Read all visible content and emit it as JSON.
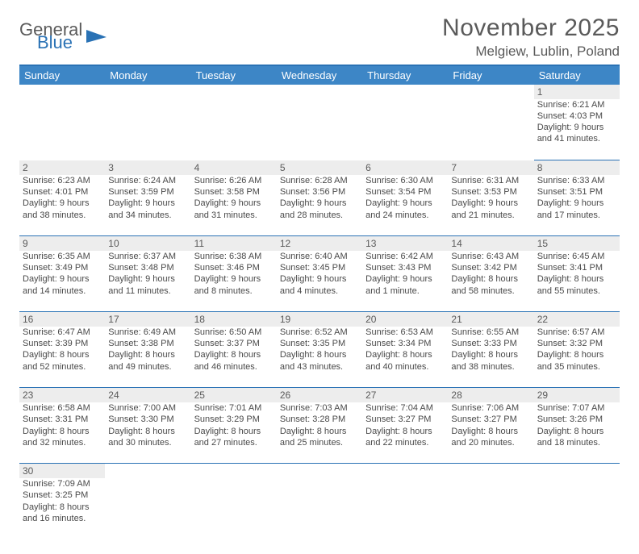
{
  "logo": {
    "word1": "General",
    "word2": "Blue"
  },
  "title": "November 2025",
  "location": "Melgiew, Lublin, Poland",
  "colors": {
    "brand_blue": "#2a72b5",
    "header_blue": "#3d86c6",
    "shade": "#ededed",
    "text_gray": "#5a5a5a"
  },
  "dayHeaders": [
    "Sunday",
    "Monday",
    "Tuesday",
    "Wednesday",
    "Thursday",
    "Friday",
    "Saturday"
  ],
  "weeks": [
    [
      null,
      null,
      null,
      null,
      null,
      null,
      {
        "n": "1",
        "sr": "Sunrise: 6:21 AM",
        "ss": "Sunset: 4:03 PM",
        "dl1": "Daylight: 9 hours",
        "dl2": "and 41 minutes."
      }
    ],
    [
      {
        "n": "2",
        "sr": "Sunrise: 6:23 AM",
        "ss": "Sunset: 4:01 PM",
        "dl1": "Daylight: 9 hours",
        "dl2": "and 38 minutes."
      },
      {
        "n": "3",
        "sr": "Sunrise: 6:24 AM",
        "ss": "Sunset: 3:59 PM",
        "dl1": "Daylight: 9 hours",
        "dl2": "and 34 minutes."
      },
      {
        "n": "4",
        "sr": "Sunrise: 6:26 AM",
        "ss": "Sunset: 3:58 PM",
        "dl1": "Daylight: 9 hours",
        "dl2": "and 31 minutes."
      },
      {
        "n": "5",
        "sr": "Sunrise: 6:28 AM",
        "ss": "Sunset: 3:56 PM",
        "dl1": "Daylight: 9 hours",
        "dl2": "and 28 minutes."
      },
      {
        "n": "6",
        "sr": "Sunrise: 6:30 AM",
        "ss": "Sunset: 3:54 PM",
        "dl1": "Daylight: 9 hours",
        "dl2": "and 24 minutes."
      },
      {
        "n": "7",
        "sr": "Sunrise: 6:31 AM",
        "ss": "Sunset: 3:53 PM",
        "dl1": "Daylight: 9 hours",
        "dl2": "and 21 minutes."
      },
      {
        "n": "8",
        "sr": "Sunrise: 6:33 AM",
        "ss": "Sunset: 3:51 PM",
        "dl1": "Daylight: 9 hours",
        "dl2": "and 17 minutes."
      }
    ],
    [
      {
        "n": "9",
        "sr": "Sunrise: 6:35 AM",
        "ss": "Sunset: 3:49 PM",
        "dl1": "Daylight: 9 hours",
        "dl2": "and 14 minutes."
      },
      {
        "n": "10",
        "sr": "Sunrise: 6:37 AM",
        "ss": "Sunset: 3:48 PM",
        "dl1": "Daylight: 9 hours",
        "dl2": "and 11 minutes."
      },
      {
        "n": "11",
        "sr": "Sunrise: 6:38 AM",
        "ss": "Sunset: 3:46 PM",
        "dl1": "Daylight: 9 hours",
        "dl2": "and 8 minutes."
      },
      {
        "n": "12",
        "sr": "Sunrise: 6:40 AM",
        "ss": "Sunset: 3:45 PM",
        "dl1": "Daylight: 9 hours",
        "dl2": "and 4 minutes."
      },
      {
        "n": "13",
        "sr": "Sunrise: 6:42 AM",
        "ss": "Sunset: 3:43 PM",
        "dl1": "Daylight: 9 hours",
        "dl2": "and 1 minute."
      },
      {
        "n": "14",
        "sr": "Sunrise: 6:43 AM",
        "ss": "Sunset: 3:42 PM",
        "dl1": "Daylight: 8 hours",
        "dl2": "and 58 minutes."
      },
      {
        "n": "15",
        "sr": "Sunrise: 6:45 AM",
        "ss": "Sunset: 3:41 PM",
        "dl1": "Daylight: 8 hours",
        "dl2": "and 55 minutes."
      }
    ],
    [
      {
        "n": "16",
        "sr": "Sunrise: 6:47 AM",
        "ss": "Sunset: 3:39 PM",
        "dl1": "Daylight: 8 hours",
        "dl2": "and 52 minutes."
      },
      {
        "n": "17",
        "sr": "Sunrise: 6:49 AM",
        "ss": "Sunset: 3:38 PM",
        "dl1": "Daylight: 8 hours",
        "dl2": "and 49 minutes."
      },
      {
        "n": "18",
        "sr": "Sunrise: 6:50 AM",
        "ss": "Sunset: 3:37 PM",
        "dl1": "Daylight: 8 hours",
        "dl2": "and 46 minutes."
      },
      {
        "n": "19",
        "sr": "Sunrise: 6:52 AM",
        "ss": "Sunset: 3:35 PM",
        "dl1": "Daylight: 8 hours",
        "dl2": "and 43 minutes."
      },
      {
        "n": "20",
        "sr": "Sunrise: 6:53 AM",
        "ss": "Sunset: 3:34 PM",
        "dl1": "Daylight: 8 hours",
        "dl2": "and 40 minutes."
      },
      {
        "n": "21",
        "sr": "Sunrise: 6:55 AM",
        "ss": "Sunset: 3:33 PM",
        "dl1": "Daylight: 8 hours",
        "dl2": "and 38 minutes."
      },
      {
        "n": "22",
        "sr": "Sunrise: 6:57 AM",
        "ss": "Sunset: 3:32 PM",
        "dl1": "Daylight: 8 hours",
        "dl2": "and 35 minutes."
      }
    ],
    [
      {
        "n": "23",
        "sr": "Sunrise: 6:58 AM",
        "ss": "Sunset: 3:31 PM",
        "dl1": "Daylight: 8 hours",
        "dl2": "and 32 minutes."
      },
      {
        "n": "24",
        "sr": "Sunrise: 7:00 AM",
        "ss": "Sunset: 3:30 PM",
        "dl1": "Daylight: 8 hours",
        "dl2": "and 30 minutes."
      },
      {
        "n": "25",
        "sr": "Sunrise: 7:01 AM",
        "ss": "Sunset: 3:29 PM",
        "dl1": "Daylight: 8 hours",
        "dl2": "and 27 minutes."
      },
      {
        "n": "26",
        "sr": "Sunrise: 7:03 AM",
        "ss": "Sunset: 3:28 PM",
        "dl1": "Daylight: 8 hours",
        "dl2": "and 25 minutes."
      },
      {
        "n": "27",
        "sr": "Sunrise: 7:04 AM",
        "ss": "Sunset: 3:27 PM",
        "dl1": "Daylight: 8 hours",
        "dl2": "and 22 minutes."
      },
      {
        "n": "28",
        "sr": "Sunrise: 7:06 AM",
        "ss": "Sunset: 3:27 PM",
        "dl1": "Daylight: 8 hours",
        "dl2": "and 20 minutes."
      },
      {
        "n": "29",
        "sr": "Sunrise: 7:07 AM",
        "ss": "Sunset: 3:26 PM",
        "dl1": "Daylight: 8 hours",
        "dl2": "and 18 minutes."
      }
    ],
    [
      {
        "n": "30",
        "sr": "Sunrise: 7:09 AM",
        "ss": "Sunset: 3:25 PM",
        "dl1": "Daylight: 8 hours",
        "dl2": "and 16 minutes."
      },
      null,
      null,
      null,
      null,
      null,
      null
    ]
  ]
}
